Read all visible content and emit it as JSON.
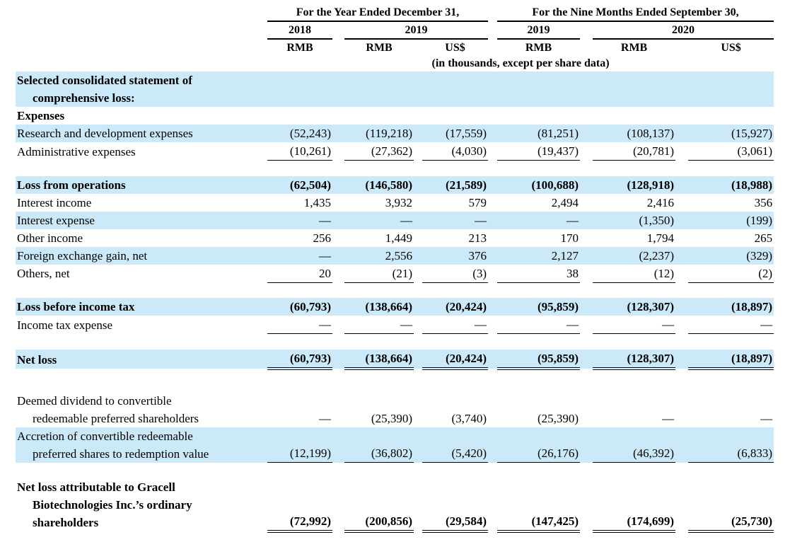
{
  "page": {
    "background_color": "#ffffff",
    "text_color": "#000000",
    "highlight_color": "#cbe9f8"
  },
  "table": {
    "groups": [
      {
        "title": "For the Year Ended December 31,",
        "years": [
          {
            "label": "2018"
          },
          {
            "label": "2019"
          }
        ]
      },
      {
        "title": "For the Nine Months Ended September 30,",
        "years": [
          {
            "label": "2019"
          },
          {
            "label": "2020"
          }
        ]
      }
    ],
    "currency_labels": [
      "RMB",
      "RMB",
      "US$",
      "RMB",
      "RMB",
      "US$"
    ],
    "units_note": "(in thousands, except per share data)",
    "rows": [
      {
        "label": [
          "Selected consolidated statement of",
          "comprehensive loss:"
        ],
        "bold": true,
        "highlight": true
      },
      {
        "label": [
          "Expenses"
        ],
        "bold": true
      },
      {
        "label": [
          "Research and development expenses"
        ],
        "highlight": true,
        "values": [
          "(52,243)",
          "(119,218)",
          "(17,559)",
          "(81,251)",
          "(108,137)",
          "(15,927)"
        ]
      },
      {
        "label": [
          "Administrative expenses"
        ],
        "underline": "single",
        "values": [
          "(10,261)",
          "(27,362)",
          "(4,030)",
          "(19,437)",
          "(20,781)",
          "(3,061)"
        ]
      },
      {
        "spacer": true
      },
      {
        "label": [
          "Loss from operations"
        ],
        "bold": true,
        "highlight": true,
        "values": [
          "(62,504)",
          "(146,580)",
          "(21,589)",
          "(100,688)",
          "(128,918)",
          "(18,988)"
        ]
      },
      {
        "label": [
          "Interest income"
        ],
        "values": [
          "1,435",
          "3,932",
          "579",
          "2,494",
          "2,416",
          "356"
        ]
      },
      {
        "label": [
          "Interest expense"
        ],
        "highlight": true,
        "values": [
          "—",
          "—",
          "—",
          "—",
          "(1,350)",
          "(199)"
        ]
      },
      {
        "label": [
          "Other income"
        ],
        "values": [
          "256",
          "1,449",
          "213",
          "170",
          "1,794",
          "265"
        ]
      },
      {
        "label": [
          "Foreign exchange gain, net"
        ],
        "highlight": true,
        "values": [
          "—",
          "2,556",
          "376",
          "2,127",
          "(2,237)",
          "(329)"
        ]
      },
      {
        "label": [
          "Others, net"
        ],
        "underline": "single",
        "values": [
          "20",
          "(21)",
          "(3)",
          "38",
          "(12)",
          "(2)"
        ]
      },
      {
        "spacer": true
      },
      {
        "label": [
          "Loss before income tax"
        ],
        "bold": true,
        "highlight": true,
        "values": [
          "(60,793)",
          "(138,664)",
          "(20,424)",
          "(95,859)",
          "(128,307)",
          "(18,897)"
        ]
      },
      {
        "label": [
          "Income tax expense"
        ],
        "underline": "single",
        "values": [
          "—",
          "—",
          "—",
          "—",
          "—",
          "—"
        ]
      },
      {
        "spacer": true
      },
      {
        "label": [
          "Net loss"
        ],
        "bold": true,
        "highlight": true,
        "underline": "double",
        "values": [
          "(60,793)",
          "(138,664)",
          "(20,424)",
          "(95,859)",
          "(128,307)",
          "(18,897)"
        ]
      },
      {
        "spacer": true,
        "tall": true
      },
      {
        "label": [
          "Deemed dividend to convertible",
          "redeemable preferred shareholders"
        ],
        "values": [
          "—",
          "(25,390)",
          "(3,740)",
          "(25,390)",
          "—",
          "—"
        ]
      },
      {
        "label": [
          "Accretion of convertible redeemable",
          "preferred shares to redemption value"
        ],
        "highlight": true,
        "underline": "single",
        "values": [
          "(12,199)",
          "(36,802)",
          "(5,420)",
          "(26,176)",
          "(46,392)",
          "(6,833)"
        ]
      },
      {
        "spacer": true
      },
      {
        "label": [
          "Net loss attributable to Gracell",
          "Biotechnologies Inc.’s ordinary",
          "shareholders"
        ],
        "bold": true,
        "underline": "double",
        "values": [
          "(72,992)",
          "(200,856)",
          "(29,584)",
          "(147,425)",
          "(174,699)",
          "(25,730)"
        ]
      }
    ]
  }
}
